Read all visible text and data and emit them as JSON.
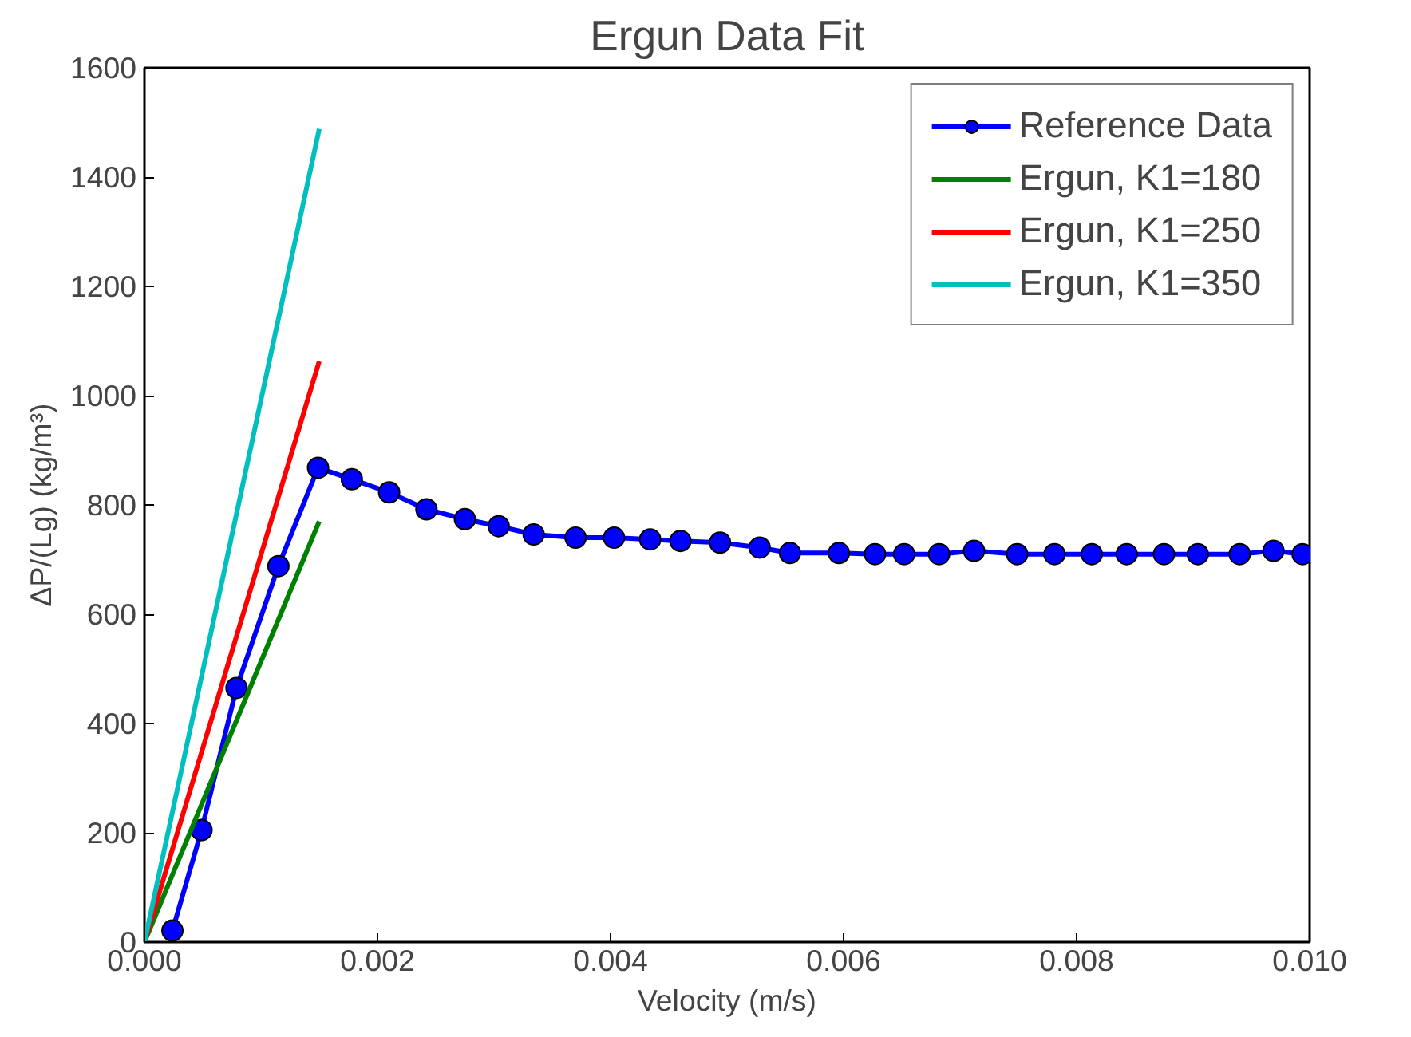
{
  "chart_data": {
    "type": "line",
    "title": "Ergun Data Fit",
    "xlabel": "Velocity (m/s)",
    "ylabel": "ΔP/(Lg) (kg/m³)",
    "xlim": [
      0,
      0.01
    ],
    "ylim": [
      0,
      1600
    ],
    "xticks": [
      {
        "value": 0,
        "label": "0.000"
      },
      {
        "value": 0.002,
        "label": "0.002"
      },
      {
        "value": 0.004,
        "label": "0.004"
      },
      {
        "value": 0.006,
        "label": "0.006"
      },
      {
        "value": 0.008,
        "label": "0.008"
      },
      {
        "value": 0.01,
        "label": "0.010"
      }
    ],
    "yticks": [
      0,
      200,
      400,
      600,
      800,
      1000,
      1200,
      1400,
      1600
    ],
    "grid": false,
    "legend": "top right",
    "series": [
      {
        "name": "Reference Data",
        "color": "#0000ff",
        "marker": "circle",
        "x": [
          0.00024,
          0.00049,
          0.00079,
          0.00115,
          0.00149,
          0.00178,
          0.0021,
          0.00242,
          0.00275,
          0.00304,
          0.00334,
          0.0037,
          0.00403,
          0.00434,
          0.0046,
          0.00494,
          0.00528,
          0.00554,
          0.00596,
          0.00627,
          0.00652,
          0.00682,
          0.00712,
          0.00749,
          0.00781,
          0.00813,
          0.00843,
          0.00875,
          0.00904,
          0.0094,
          0.00969,
          0.00994
        ],
        "values": [
          21,
          205,
          465,
          688,
          868,
          847,
          823,
          792,
          774,
          761,
          746,
          740,
          740,
          737,
          734,
          731,
          722,
          712,
          712,
          710,
          710,
          710,
          716,
          710,
          710,
          710,
          710,
          710,
          710,
          710,
          716,
          710
        ]
      },
      {
        "name": "Ergun, K1=180",
        "color": "#008000",
        "marker": "none",
        "x": [
          0,
          0.0015
        ],
        "values": [
          0,
          770
        ]
      },
      {
        "name": "Ergun, K1=250",
        "color": "#ff0000",
        "marker": "none",
        "x": [
          0,
          0.0015
        ],
        "values": [
          0,
          1063
        ]
      },
      {
        "name": "Ergun, K1=350",
        "color": "#00bfbf",
        "marker": "none",
        "x": [
          0,
          0.0015
        ],
        "values": [
          0,
          1488
        ]
      }
    ]
  }
}
